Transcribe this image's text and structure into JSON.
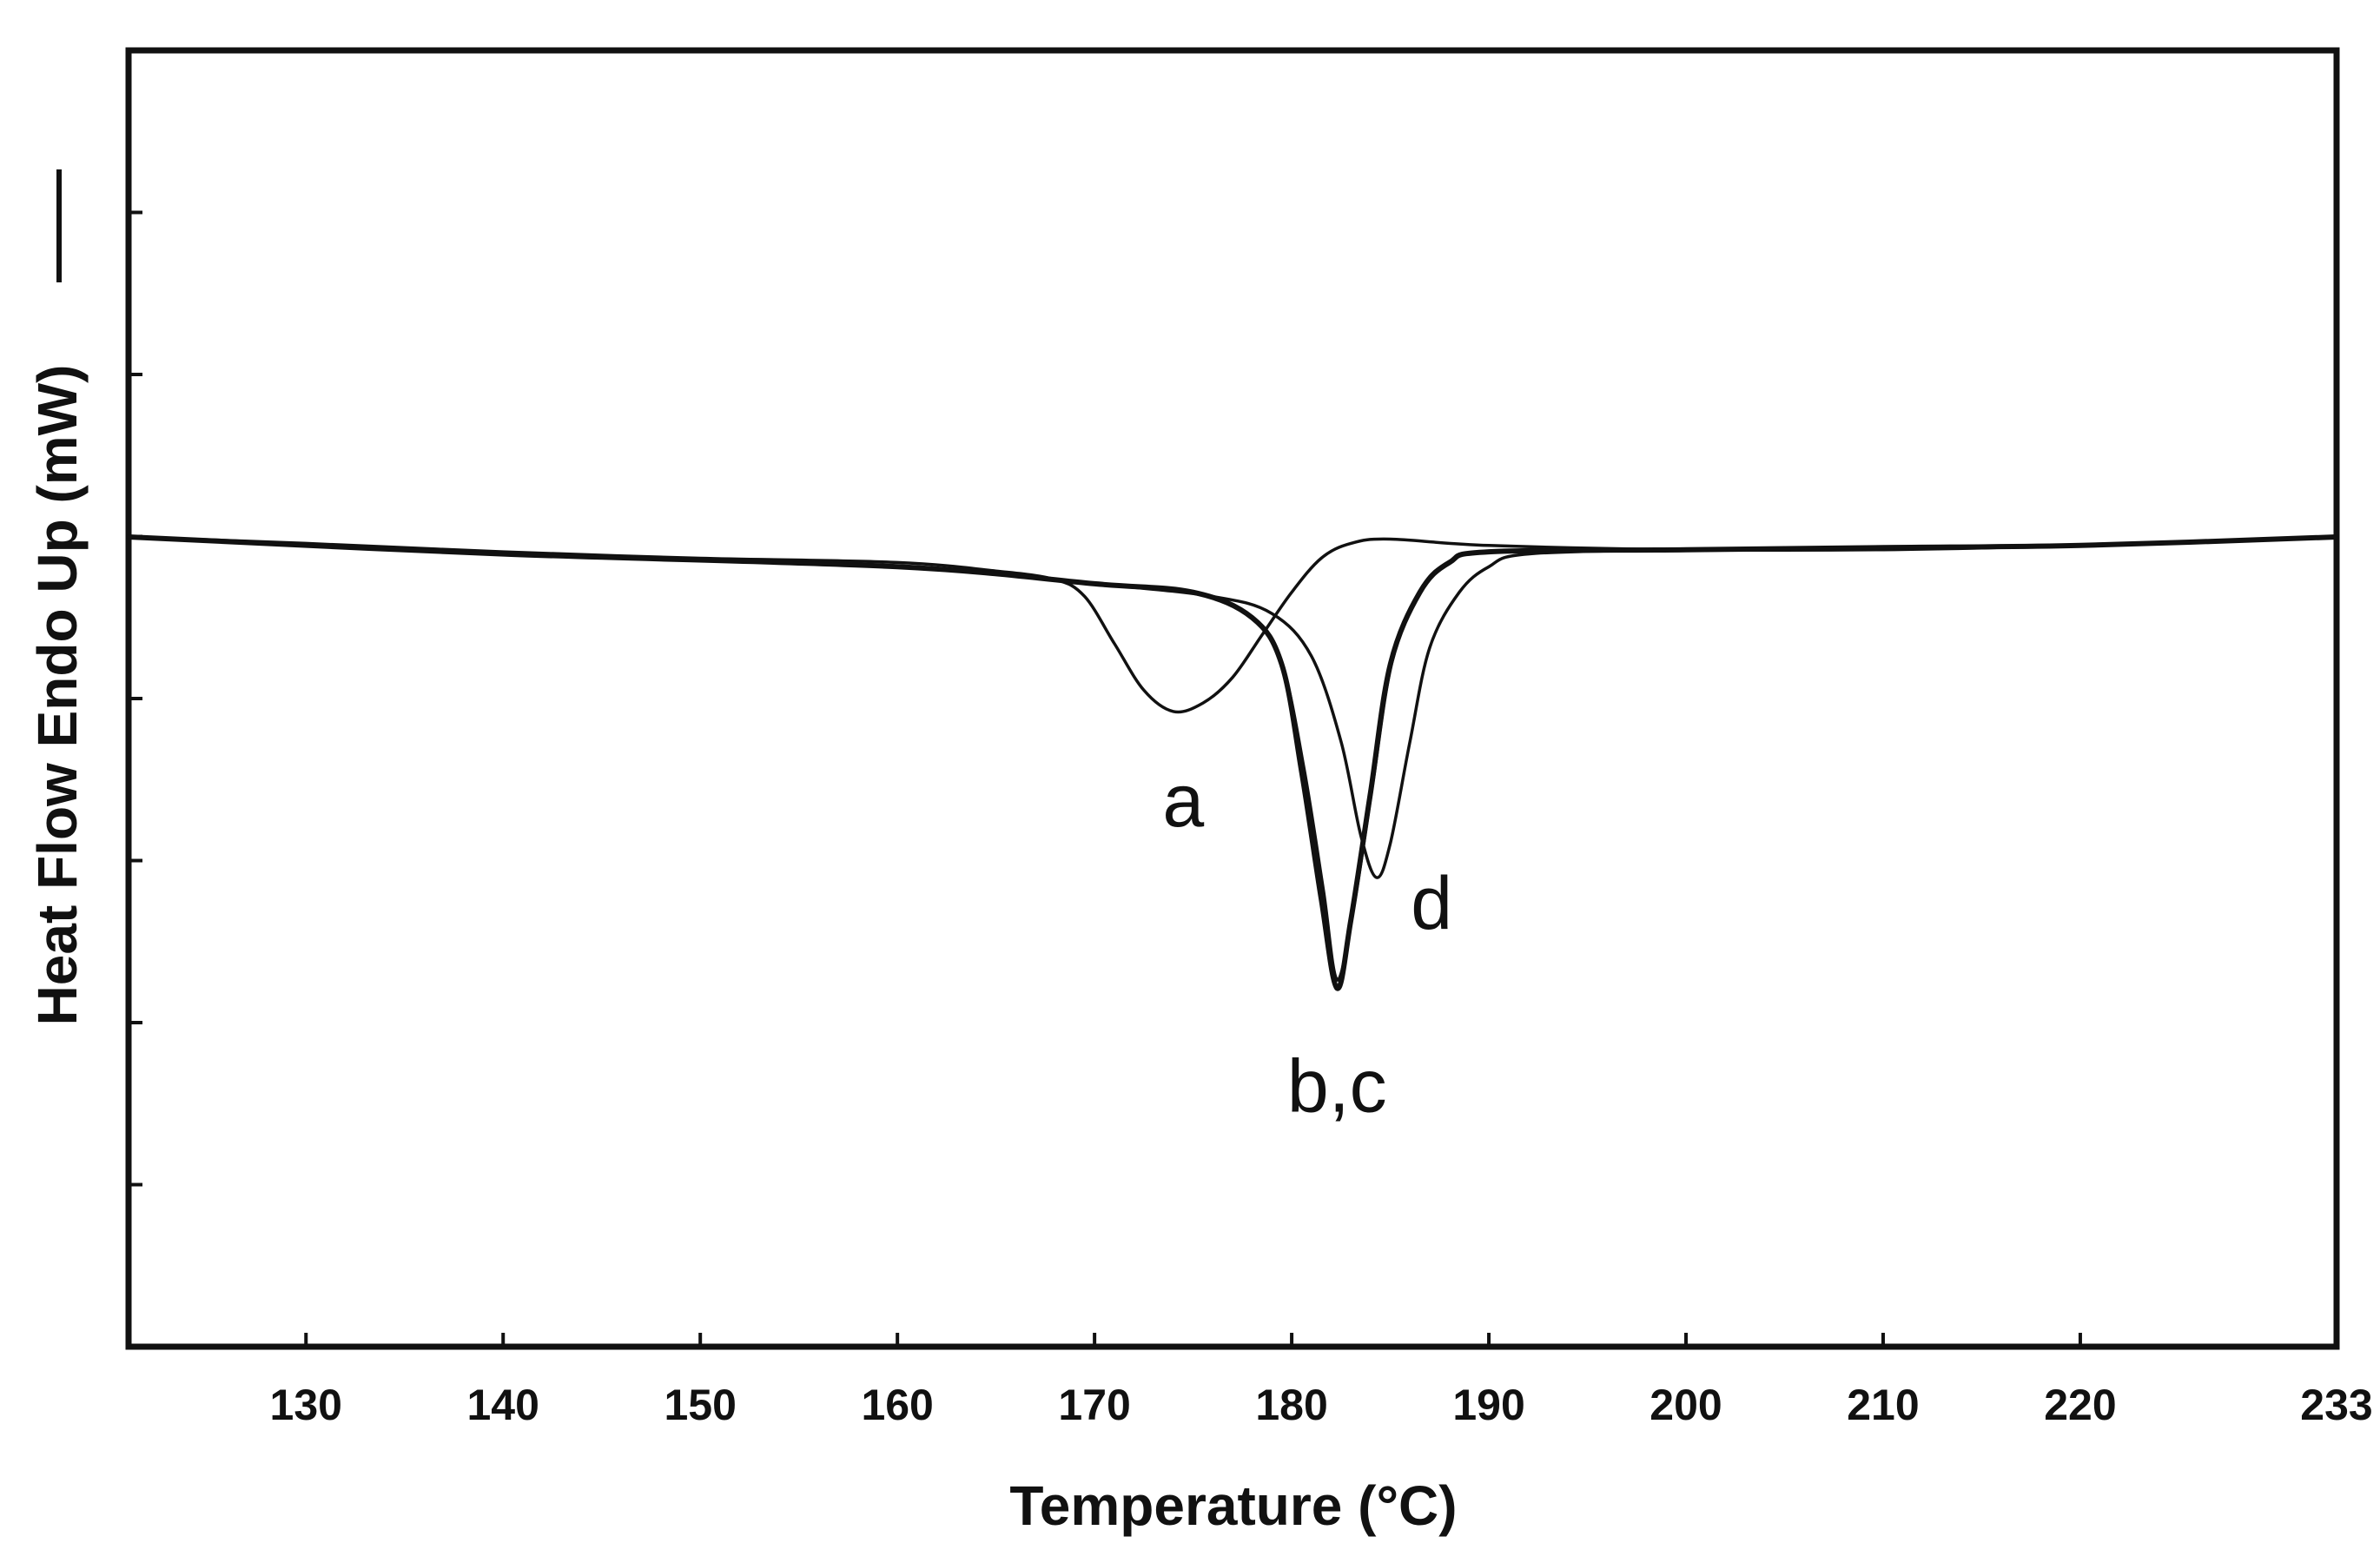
{
  "chart_data": {
    "type": "line",
    "title": "",
    "xlabel": "Temperature (°C)",
    "ylabel": "Heat Flow Endo Up (mW)",
    "xlim": [
      121,
      233
    ],
    "ylim": [
      -10,
      10
    ],
    "grid": false,
    "x_ticks": [
      130,
      140,
      150,
      160,
      170,
      180,
      190,
      200,
      210,
      220,
      233
    ],
    "x_tick_labels": [
      "130",
      "140",
      "150",
      "160",
      "170",
      "180",
      "190",
      "200",
      "210",
      "220",
      "233"
    ],
    "y_tick_count": 9,
    "series": [
      {
        "name": "a",
        "x": [
          121,
          130,
          140,
          150,
          160,
          165,
          168,
          169.5,
          171,
          172.5,
          174,
          175.5,
          177,
          178.5,
          180,
          181.5,
          183,
          185,
          190,
          200,
          210,
          220,
          233
        ],
        "y": [
          0.0,
          -0.15,
          -0.35,
          -0.5,
          -0.6,
          -0.8,
          -1.0,
          -1.4,
          -2.5,
          -3.6,
          -4.1,
          -3.9,
          -3.3,
          -2.3,
          -1.3,
          -0.5,
          -0.15,
          -0.05,
          -0.2,
          -0.3,
          -0.3,
          -0.2,
          0.0
        ]
      },
      {
        "name": "b",
        "x": [
          121,
          140,
          160,
          170,
          175,
          178,
          179.5,
          180.5,
          181.5,
          182.3,
          183,
          184,
          185,
          186.5,
          188,
          190,
          200,
          210,
          220,
          233
        ],
        "y": [
          0.0,
          -0.4,
          -0.7,
          -1.1,
          -1.3,
          -1.9,
          -3.0,
          -5.5,
          -8.5,
          -10.6,
          -9.0,
          -6.0,
          -3.0,
          -1.3,
          -0.6,
          -0.35,
          -0.3,
          -0.25,
          -0.2,
          0.0
        ]
      },
      {
        "name": "c",
        "x": [
          121,
          140,
          160,
          170,
          175,
          178,
          179.5,
          180.6,
          181.6,
          182.3,
          183.1,
          184.1,
          185.1,
          186.6,
          188,
          190,
          200,
          210,
          220,
          233
        ],
        "y": [
          0.0,
          -0.4,
          -0.7,
          -1.1,
          -1.3,
          -1.9,
          -3.0,
          -5.4,
          -8.3,
          -10.4,
          -8.8,
          -5.8,
          -2.9,
          -1.2,
          -0.6,
          -0.35,
          -0.3,
          -0.25,
          -0.2,
          0.0
        ]
      },
      {
        "name": "d",
        "x": [
          121,
          140,
          160,
          170,
          176,
          179,
          181,
          182.5,
          183.5,
          184.3,
          185,
          186,
          187,
          188.5,
          190,
          192,
          200,
          210,
          220,
          233
        ],
        "y": [
          0.0,
          -0.4,
          -0.7,
          -1.1,
          -1.4,
          -1.8,
          -2.8,
          -4.8,
          -7.0,
          -8.0,
          -7.2,
          -4.8,
          -2.6,
          -1.3,
          -0.7,
          -0.4,
          -0.3,
          -0.25,
          -0.2,
          0.0
        ]
      }
    ],
    "annotations": [
      {
        "text": "a",
        "x": 174.5,
        "y": -6.8
      },
      {
        "text": "d",
        "x": 187.1,
        "y": -9.2
      },
      {
        "text": "b,c",
        "x": 182.3,
        "y": -13.5
      }
    ]
  }
}
